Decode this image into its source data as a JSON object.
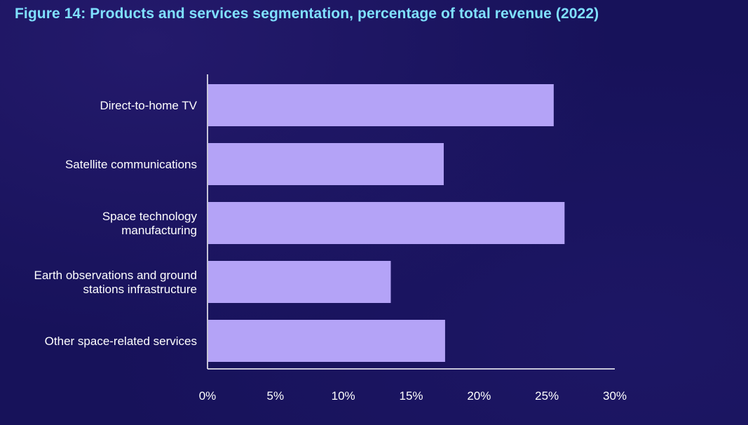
{
  "title": "Figure 14: Products and services segmentation, percentage of total revenue (2022)",
  "colors": {
    "background": "#17125a",
    "title": "#7fe0ff",
    "bar": "#b4a3f7",
    "text": "#ffffff"
  },
  "chart_data": {
    "type": "bar",
    "orientation": "horizontal",
    "title": "Figure 14: Products and services segmentation, percentage of total revenue (2022)",
    "categories": [
      [
        "Direct-to-home TV"
      ],
      [
        "Satellite communications"
      ],
      [
        "Space technology",
        "manufacturing"
      ],
      [
        "Earth observations and ground",
        "stations infrastructure"
      ],
      [
        "Other space-related services"
      ]
    ],
    "values": [
      25.5,
      17.4,
      26.3,
      13.5,
      17.5
    ],
    "xlim": [
      0,
      30
    ],
    "xticks": [
      0,
      5,
      10,
      15,
      20,
      25,
      30
    ],
    "xtick_labels": [
      "0%",
      "5%",
      "10%",
      "15%",
      "20%",
      "25%",
      "30%"
    ],
    "xlabel": "",
    "ylabel": "",
    "grid": false
  }
}
